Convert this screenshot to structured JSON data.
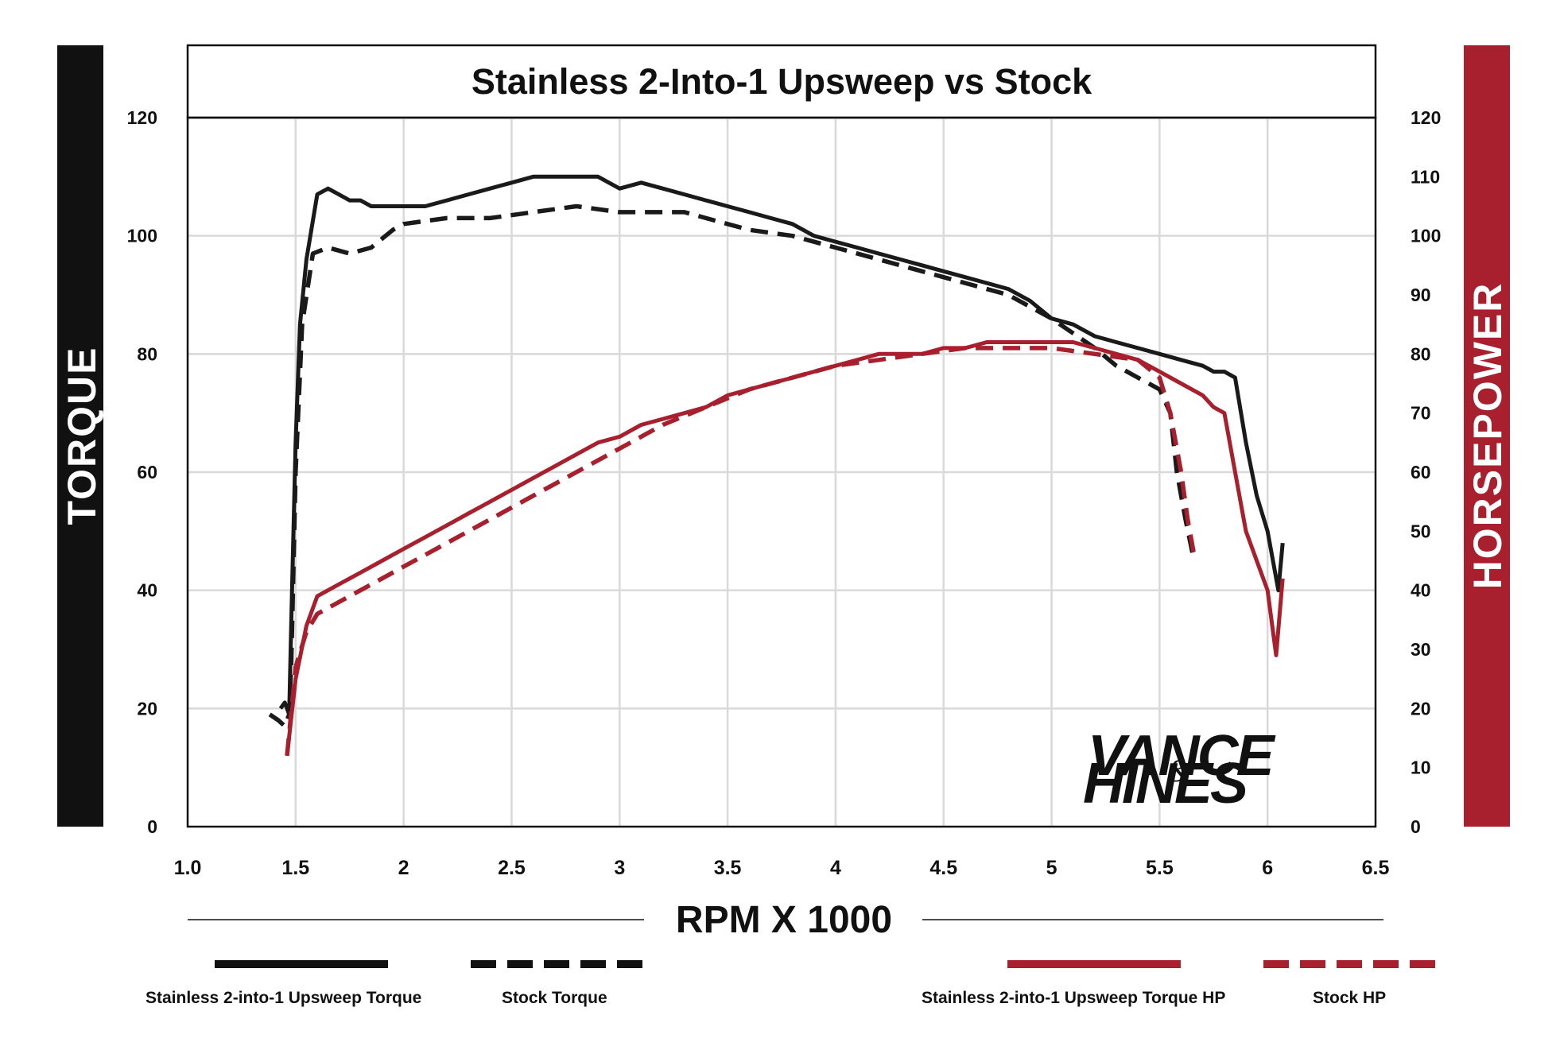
{
  "chart_data": {
    "type": "line",
    "title": "Stainless 2-Into-1 Upsweep vs Stock",
    "xlabel": "RPM X 1000",
    "ylabel_left": "TORQUE",
    "ylabel_right": "HORSEPOWER",
    "xlim": [
      1.0,
      6.5
    ],
    "ylim_left": [
      0,
      120
    ],
    "ylim_right": [
      0,
      120
    ],
    "x_ticks": [
      "1.0",
      "1.5",
      "2",
      "2.5",
      "3",
      "3.5",
      "4",
      "4.5",
      "5",
      "5.5",
      "6",
      "6.5"
    ],
    "y_ticks_left": [
      "0",
      "20",
      "40",
      "60",
      "80",
      "100",
      "120"
    ],
    "y_ticks_right": [
      "0",
      "10",
      "20",
      "30",
      "40",
      "50",
      "60",
      "70",
      "80",
      "90",
      "100",
      "110",
      "120"
    ],
    "grid": true,
    "legend_position": "bottom",
    "series": [
      {
        "name": "Stainless 2-into-1 Upsweep Torque",
        "axis": "left",
        "color": "#1a1a1a",
        "style": "solid",
        "x": [
          1.43,
          1.45,
          1.47,
          1.48,
          1.5,
          1.52,
          1.55,
          1.6,
          1.65,
          1.7,
          1.75,
          1.8,
          1.85,
          1.9,
          2.0,
          2.1,
          2.2,
          2.3,
          2.4,
          2.5,
          2.6,
          2.7,
          2.8,
          2.9,
          3.0,
          3.1,
          3.2,
          3.3,
          3.4,
          3.5,
          3.6,
          3.7,
          3.8,
          3.9,
          4.0,
          4.1,
          4.2,
          4.3,
          4.4,
          4.5,
          4.6,
          4.7,
          4.8,
          4.9,
          5.0,
          5.1,
          5.2,
          5.3,
          5.4,
          5.5,
          5.6,
          5.7,
          5.75,
          5.8,
          5.85,
          5.9,
          5.95,
          6.0,
          6.05,
          6.07
        ],
        "y": [
          20,
          21,
          19,
          35,
          65,
          85,
          96,
          107,
          108,
          107,
          106,
          106,
          105,
          105,
          105,
          105,
          106,
          107,
          108,
          109,
          110,
          110,
          110,
          110,
          108,
          109,
          108,
          107,
          106,
          105,
          104,
          103,
          102,
          100,
          99,
          98,
          97,
          96,
          95,
          94,
          93,
          92,
          91,
          89,
          86,
          85,
          83,
          82,
          81,
          80,
          79,
          78,
          77,
          77,
          76,
          65,
          56,
          50,
          40,
          48
        ]
      },
      {
        "name": "Stock Torque",
        "axis": "left",
        "color": "#1a1a1a",
        "style": "dashed",
        "x": [
          1.38,
          1.42,
          1.45,
          1.47,
          1.48,
          1.5,
          1.53,
          1.58,
          1.65,
          1.75,
          1.85,
          1.95,
          2.0,
          2.2,
          2.4,
          2.6,
          2.8,
          3.0,
          3.1,
          3.2,
          3.3,
          3.4,
          3.5,
          3.6,
          3.8,
          4.0,
          4.2,
          4.4,
          4.6,
          4.8,
          5.0,
          5.2,
          5.3,
          5.4,
          5.5,
          5.55,
          5.58,
          5.62,
          5.66
        ],
        "y": [
          19,
          18,
          17,
          19,
          28,
          60,
          85,
          97,
          98,
          97,
          98,
          101,
          102,
          103,
          103,
          104,
          105,
          104,
          104,
          104,
          104,
          103,
          102,
          101,
          100,
          98,
          96,
          94,
          92,
          90,
          86,
          81,
          78,
          76,
          74,
          70,
          60,
          52,
          45
        ]
      },
      {
        "name": "Stainless 2-into-1 Upsweep Torque HP",
        "axis": "right",
        "color": "#a8202e",
        "style": "solid",
        "x": [
          1.46,
          1.5,
          1.55,
          1.6,
          1.7,
          1.8,
          1.9,
          2.0,
          2.1,
          2.2,
          2.3,
          2.4,
          2.5,
          2.6,
          2.7,
          2.8,
          2.9,
          3.0,
          3.1,
          3.2,
          3.3,
          3.4,
          3.5,
          3.6,
          3.7,
          3.8,
          3.9,
          4.0,
          4.1,
          4.2,
          4.3,
          4.4,
          4.5,
          4.6,
          4.7,
          4.8,
          4.9,
          5.0,
          5.1,
          5.2,
          5.3,
          5.4,
          5.5,
          5.6,
          5.7,
          5.75,
          5.8,
          5.85,
          5.9,
          5.95,
          6.0,
          6.04,
          6.07
        ],
        "y": [
          12,
          25,
          34,
          39,
          41,
          43,
          45,
          47,
          49,
          51,
          53,
          55,
          57,
          59,
          61,
          63,
          65,
          66,
          68,
          69,
          70,
          71,
          73,
          74,
          75,
          76,
          77,
          78,
          79,
          80,
          80,
          80,
          81,
          81,
          82,
          82,
          82,
          82,
          82,
          81,
          80,
          79,
          77,
          75,
          73,
          71,
          70,
          60,
          50,
          45,
          40,
          29,
          42
        ]
      },
      {
        "name": "Stock HP",
        "axis": "right",
        "color": "#a8202e",
        "style": "dashed",
        "x": [
          1.46,
          1.5,
          1.55,
          1.6,
          1.7,
          1.8,
          1.9,
          2.0,
          2.2,
          2.4,
          2.6,
          2.8,
          3.0,
          3.2,
          3.4,
          3.6,
          3.8,
          4.0,
          4.2,
          4.4,
          4.6,
          4.8,
          5.0,
          5.2,
          5.4,
          5.5,
          5.55,
          5.6,
          5.63,
          5.66
        ],
        "y": [
          12,
          27,
          33,
          36,
          38,
          40,
          42,
          44,
          48,
          52,
          56,
          60,
          64,
          68,
          71,
          74,
          76,
          78,
          79,
          80,
          81,
          81,
          81,
          80,
          79,
          76,
          70,
          60,
          52,
          46
        ]
      }
    ]
  },
  "logo": {
    "line1": "VANCE",
    "amp": "&",
    "line2": "HINES"
  }
}
